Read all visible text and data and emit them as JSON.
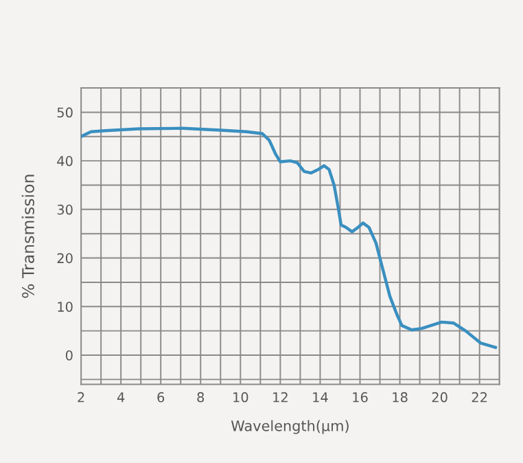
{
  "chart_data": {
    "type": "line",
    "xlabel": "Wavelength(μm)",
    "ylabel": "% Transmission",
    "x": [
      2,
      2.5,
      3.2,
      4.9,
      7.1,
      9,
      10.3,
      11.1,
      11.45,
      11.75,
      12.0,
      12.5,
      12.85,
      13.2,
      13.55,
      13.9,
      14.2,
      14.45,
      14.7,
      14.9,
      15.05,
      15.3,
      15.6,
      15.9,
      16.15,
      16.45,
      16.8,
      17.15,
      17.5,
      17.85,
      18.1,
      18.6,
      19.1,
      20.1,
      20.7,
      21.3,
      22.05,
      22.8
    ],
    "series": [
      {
        "color": "#3a8fc0",
        "values": [
          45.0,
          46,
          46.2,
          46.6,
          46.7,
          46.3,
          46,
          45.6,
          44.2,
          41.5,
          39.8,
          40,
          39.6,
          37.8,
          37.5,
          38.2,
          39,
          38.2,
          35,
          30.5,
          26.8,
          26.3,
          25.4,
          26.3,
          27.2,
          26.3,
          23.1,
          17.6,
          12.1,
          8.4,
          6.1,
          5.2,
          5.5,
          6.8,
          6.6,
          5.0,
          2.5,
          1.6
        ]
      }
    ],
    "xlim": [
      2,
      23
    ],
    "xticks": [
      2,
      {
        "value": 3,
        "label": null
      },
      4,
      {
        "value": 5,
        "label": null
      },
      6,
      {
        "value": 7,
        "label": null
      },
      8,
      {
        "value": 9,
        "label": null
      },
      10,
      {
        "value": 11,
        "label": null
      },
      12,
      {
        "value": 13,
        "label": null
      },
      14,
      {
        "value": 15,
        "label": null
      },
      16,
      {
        "value": 17,
        "label": null
      },
      18,
      {
        "value": 19,
        "label": null
      },
      20,
      {
        "value": 21,
        "label": null
      },
      22,
      {
        "value": 23,
        "label": null
      }
    ],
    "ylim": [
      -6,
      55
    ],
    "yticks": [
      {
        "value": -5,
        "label": null
      },
      0,
      {
        "value": 5,
        "label": null
      },
      10,
      {
        "value": 15,
        "label": null
      },
      20,
      {
        "value": 25,
        "label": null
      },
      30,
      {
        "value": 35,
        "label": null
      },
      40,
      {
        "value": 45,
        "label": null
      },
      50,
      {
        "value": 55,
        "label": null
      }
    ],
    "grid": true,
    "marker": "none",
    "line_style": "solid"
  }
}
